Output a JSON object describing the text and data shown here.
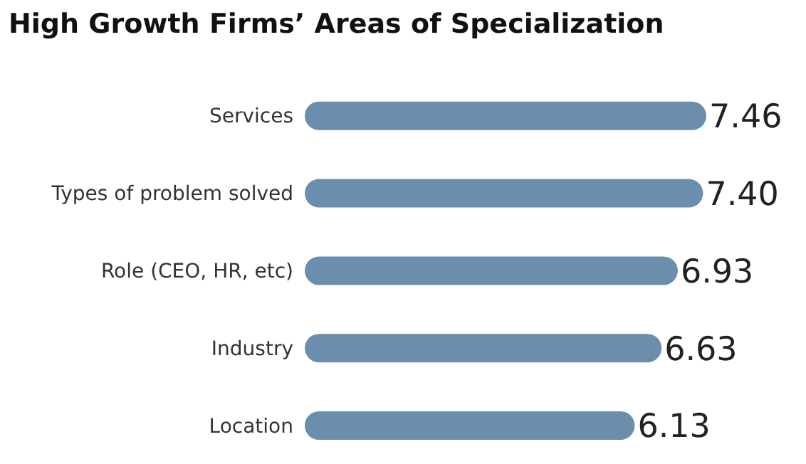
{
  "chart_data": {
    "type": "bar",
    "orientation": "horizontal",
    "title": "High Growth Firms’ Areas of Specialization",
    "categories": [
      "Services",
      "Types of problem solved",
      "Role (CEO, HR, etc)",
      "Industry",
      "Location"
    ],
    "values": [
      7.46,
      7.4,
      6.93,
      6.63,
      6.13
    ],
    "value_labels": [
      "7.46",
      "7.40",
      "6.93",
      "6.63",
      "6.13"
    ],
    "color": "#6a8eab",
    "grid": false,
    "legend": false
  }
}
